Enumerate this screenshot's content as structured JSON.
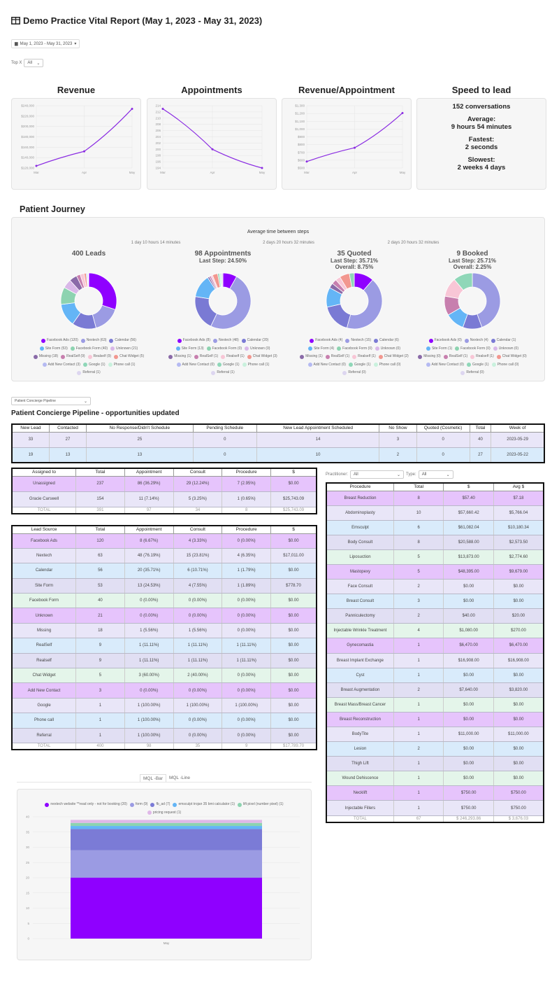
{
  "header": {
    "title": "Demo Practice Vital Report (May 1, 2023 - May 31, 2023)",
    "icon": "table-icon",
    "date_range": "May 1, 2023 - May 31, 2023",
    "topx_label": "Top X",
    "topx_value": "All"
  },
  "kpi_charts": [
    {
      "title": "Revenue",
      "type": "line",
      "x": [
        "Mar",
        "Apr",
        "May"
      ],
      "values": [
        124000,
        152000,
        234000
      ],
      "ylim": [
        120000,
        240000
      ],
      "yticks": [
        "$120,000",
        "$140,000",
        "$160,000",
        "$180,000",
        "$200,000",
        "$220,000",
        "$240,000"
      ],
      "color": "#8a2be2"
    },
    {
      "title": "Appointments",
      "type": "line",
      "x": [
        "Mar",
        "Apr",
        "May"
      ],
      "values": [
        213,
        200,
        194
      ],
      "ylim": [
        194,
        214
      ],
      "yticks": [
        "194",
        "196",
        "198",
        "200",
        "202",
        "204",
        "206",
        "208",
        "210",
        "212",
        "214"
      ],
      "color": "#8a2be2"
    },
    {
      "title": "Revenue/Appointment",
      "type": "line",
      "x": [
        "Mar",
        "Apr",
        "May"
      ],
      "values": [
        583,
        760,
        1206
      ],
      "ylim": [
        500,
        1300
      ],
      "yticks": [
        "$500",
        "$600",
        "$700",
        "$800",
        "$900",
        "$1,000",
        "$1,100",
        "$1,200",
        "$1,300"
      ],
      "color": "#8a2be2"
    }
  ],
  "speed": {
    "title": "Speed to lead",
    "conversations": "152 conversations",
    "avg_label": "Average:",
    "avg": "9 hours 54 minutes",
    "fast_label": "Fastest:",
    "fast": "2 seconds",
    "slow_label": "Slowest:",
    "slow": "2 weeks 4 days"
  },
  "journey": {
    "title": "Patient Journey",
    "avg_title": "Average time between steps",
    "gaps": [
      "1 day 10 hours 14 minutes",
      "2 days 20 hours 32 minutes",
      "2 days 20 hours 32 minutes"
    ],
    "sources": [
      "Facebook Ads",
      "Nextech",
      "Calendar",
      "Site Form",
      "Facebook Form",
      "Unknown",
      "Missing",
      "RealSelf",
      "Realself",
      "Chat Widget",
      "Add New Contact",
      "Google",
      "Phone call",
      "Referral"
    ],
    "colors": [
      "#8f00ff",
      "#9b9be3",
      "#7a7ad4",
      "#64b5f6",
      "#8dd3b0",
      "#d9b8e8",
      "#8a6aa8",
      "#c77fae",
      "#f8c6d6",
      "#f2978f",
      "#b5baf2",
      "#8fd7b8",
      "#c9f1dd",
      "#ddd6f0"
    ],
    "steps": [
      {
        "title": "400 Leads",
        "last": "",
        "overall": "",
        "values": [
          120,
          63,
          56,
          53,
          40,
          21,
          18,
          9,
          9,
          5,
          3,
          1,
          1,
          1
        ]
      },
      {
        "title": "98 Appointments",
        "last": "Last Step: 24.50%",
        "overall": "",
        "values": [
          8,
          48,
          20,
          13,
          0,
          0,
          1,
          1,
          1,
          3,
          0,
          1,
          1,
          1
        ]
      },
      {
        "title": "35 Quoted",
        "last": "Last Step: 35.71%",
        "overall": "Overall: 8.75%",
        "values": [
          4,
          15,
          6,
          4,
          0,
          0,
          1,
          1,
          1,
          2,
          0,
          1,
          0,
          0
        ]
      },
      {
        "title": "9 Booked",
        "last": "Last Step: 25.71%",
        "overall": "Overall: 2.25%",
        "values": [
          0,
          4,
          1,
          1,
          0,
          0,
          0,
          1,
          1,
          0,
          0,
          1,
          0,
          0
        ]
      }
    ]
  },
  "row_colors": [
    "#e6c4fc",
    "#e9e6f8",
    "#d9ebfb",
    "#e1dff3",
    "#e4f5ea"
  ],
  "pipeline": {
    "select": "Patient Concierge Pipeline",
    "title": "Patient Concierge Pipeline - opportunities updated",
    "headers": [
      "New Lead",
      "Contacted",
      "No Response/Didn't Schedule",
      "Pending Schedule",
      "New Lead Appointment Scheduled",
      "No Show",
      "Quoted (Cosmetic)",
      "Total",
      "Week of"
    ],
    "rows": [
      [
        "33",
        "27",
        "25",
        "0",
        "14",
        "3",
        "0",
        "40",
        "2023-05-29"
      ],
      [
        "19",
        "13",
        "13",
        "0",
        "10",
        "2",
        "0",
        "27",
        "2023-05-22"
      ]
    ]
  },
  "assigned": {
    "headers": [
      "Assigned to",
      "Total",
      "Appointment",
      "Consult",
      "Procedure",
      "$"
    ],
    "rows": [
      [
        "Unassigned",
        "237",
        "86 (36.29%)",
        "29 (12.24%)",
        "7 (2.95%)",
        "$0.00"
      ],
      [
        "Gracie Carswell",
        "154",
        "11 (7.14%)",
        "5 (3.25%)",
        "1 (0.65%)",
        "$25,743.09"
      ]
    ],
    "total": [
      "TOTAL",
      "391",
      "97",
      "34",
      "8",
      "$25,743.09"
    ]
  },
  "lead_source": {
    "headers": [
      "Lead Source",
      "Total",
      "Appointment",
      "Consult",
      "Procedure",
      "$"
    ],
    "rows": [
      [
        "Facebook Ads",
        "120",
        "8 (6.67%)",
        "4 (3.33%)",
        "0 (0.00%)",
        "$0.00"
      ],
      [
        "Nextech",
        "63",
        "48 (76.19%)",
        "15 (23.81%)",
        "4 (6.35%)",
        "$17,011.00"
      ],
      [
        "Calendar",
        "56",
        "20 (35.71%)",
        "6 (10.71%)",
        "1 (1.79%)",
        "$0.00"
      ],
      [
        "Site Form",
        "53",
        "13 (24.53%)",
        "4 (7.55%)",
        "1 (1.89%)",
        "$778.70"
      ],
      [
        "Facebook Form",
        "40",
        "0 (0.00%)",
        "0 (0.00%)",
        "0 (0.00%)",
        "$0.00"
      ],
      [
        "Unknown",
        "21",
        "0 (0.00%)",
        "0 (0.00%)",
        "0 (0.00%)",
        "$0.00"
      ],
      [
        "Missing",
        "18",
        "1 (5.56%)",
        "1 (5.56%)",
        "0 (0.00%)",
        "$0.00"
      ],
      [
        "RealSelf",
        "9",
        "1 (11.11%)",
        "1 (11.11%)",
        "1 (11.11%)",
        "$0.00"
      ],
      [
        "Realself",
        "9",
        "1 (11.11%)",
        "1 (11.11%)",
        "1 (11.11%)",
        "$0.00"
      ],
      [
        "Chat Widget",
        "5",
        "3 (60.00%)",
        "2 (40.00%)",
        "0 (0.00%)",
        "$0.00"
      ],
      [
        "Add New Contact",
        "3",
        "0 (0.00%)",
        "0 (0.00%)",
        "0 (0.00%)",
        "$0.00"
      ],
      [
        "Google",
        "1",
        "1 (100.00%)",
        "1 (100.00%)",
        "1 (100.00%)",
        "$0.00"
      ],
      [
        "Phone call",
        "1",
        "1 (100.00%)",
        "0 (0.00%)",
        "0 (0.00%)",
        "$0.00"
      ],
      [
        "Referral",
        "1",
        "1 (100.00%)",
        "0 (0.00%)",
        "0 (0.00%)",
        "$0.00"
      ]
    ],
    "total": [
      "TOTAL",
      "400",
      "98",
      "35",
      "9",
      "$17,789.70"
    ]
  },
  "procedure": {
    "practitioner_label": "Practitioner:",
    "practitioner_value": "All",
    "type_label": "Type:",
    "type_value": "All",
    "headers": [
      "Procedure",
      "Total",
      "$",
      "Avg $"
    ],
    "rows": [
      [
        "Breast Reduction",
        "8",
        "$57.40",
        "$7.18"
      ],
      [
        "Abdominoplasty",
        "10",
        "$57,660.42",
        "$5,766.04"
      ],
      [
        "Emsculpt",
        "6",
        "$61,082.04",
        "$10,180.34"
      ],
      [
        "Body Consult",
        "8",
        "$20,588.00",
        "$2,573.50"
      ],
      [
        "Liposuction",
        "5",
        "$13,873.00",
        "$2,774.60"
      ],
      [
        "Mastopexy",
        "5",
        "$48,395.00",
        "$9,679.00"
      ],
      [
        "Face Consult",
        "2",
        "$0.00",
        "$0.00"
      ],
      [
        "Breast Consult",
        "3",
        "$0.00",
        "$0.00"
      ],
      [
        "Panniculectomy",
        "2",
        "$40.00",
        "$20.00"
      ],
      [
        "Injectable Wrinkle Treatment",
        "4",
        "$1,080.00",
        "$270.00"
      ],
      [
        "Gynecomastia",
        "1",
        "$6,470.00",
        "$6,470.00"
      ],
      [
        "Breast Implant Exchange",
        "1",
        "$16,908.00",
        "$16,908.00"
      ],
      [
        "Cyst",
        "1",
        "$0.00",
        "$0.00"
      ],
      [
        "Breast Augmentation",
        "2",
        "$7,640.00",
        "$3,820.00"
      ],
      [
        "Breast Mass/Breast Cancer",
        "1",
        "$0.00",
        "$0.00"
      ],
      [
        "Breast Reconstruction",
        "1",
        "$0.00",
        "$0.00"
      ],
      [
        "BodyTite",
        "1",
        "$11,000.00",
        "$11,000.00"
      ],
      [
        "Lesion",
        "2",
        "$0.00",
        "$0.00"
      ],
      [
        "Thigh Lift",
        "1",
        "$0.00",
        "$0.00"
      ],
      [
        "Wound Dehiscence",
        "1",
        "$0.00",
        "$0.00"
      ],
      [
        "Necklift",
        "1",
        "$750.00",
        "$750.00"
      ],
      [
        "Injectable Fillers",
        "1",
        "$750.00",
        "$750.00"
      ]
    ],
    "total": [
      "TOTAL",
      "67",
      "$ 246,293.86",
      "$ 3,676.03"
    ]
  },
  "mql": {
    "tabs": [
      "MQL -Bar",
      "MQL -Line"
    ],
    "active_tab": "MQL -Bar"
  },
  "chart_data": {
    "type": "bar",
    "stacked": true,
    "categories": [
      "May"
    ],
    "ylim": [
      0,
      40
    ],
    "yticks": [
      0,
      5,
      10,
      15,
      20,
      25,
      30,
      35,
      40
    ],
    "grid": true,
    "legend": "top",
    "series": [
      {
        "name": "nextech website **read only - not for booking (20)",
        "values": [
          20
        ],
        "color": "#8f00ff"
      },
      {
        "name": "form (9)",
        "values": [
          9
        ],
        "color": "#9b9be3"
      },
      {
        "name": "fb_ad (7)",
        "values": [
          7
        ],
        "color": "#7b7bd6"
      },
      {
        "name": "emsculpt trojan 35 bmi calculator (1)",
        "values": [
          1
        ],
        "color": "#64b5f6"
      },
      {
        "name": "lift pixel (number pixel) (1)",
        "values": [
          1
        ],
        "color": "#8dd3b0"
      },
      {
        "name": "pricing request (1)",
        "values": [
          1
        ],
        "color": "#e0b8e8"
      }
    ]
  }
}
